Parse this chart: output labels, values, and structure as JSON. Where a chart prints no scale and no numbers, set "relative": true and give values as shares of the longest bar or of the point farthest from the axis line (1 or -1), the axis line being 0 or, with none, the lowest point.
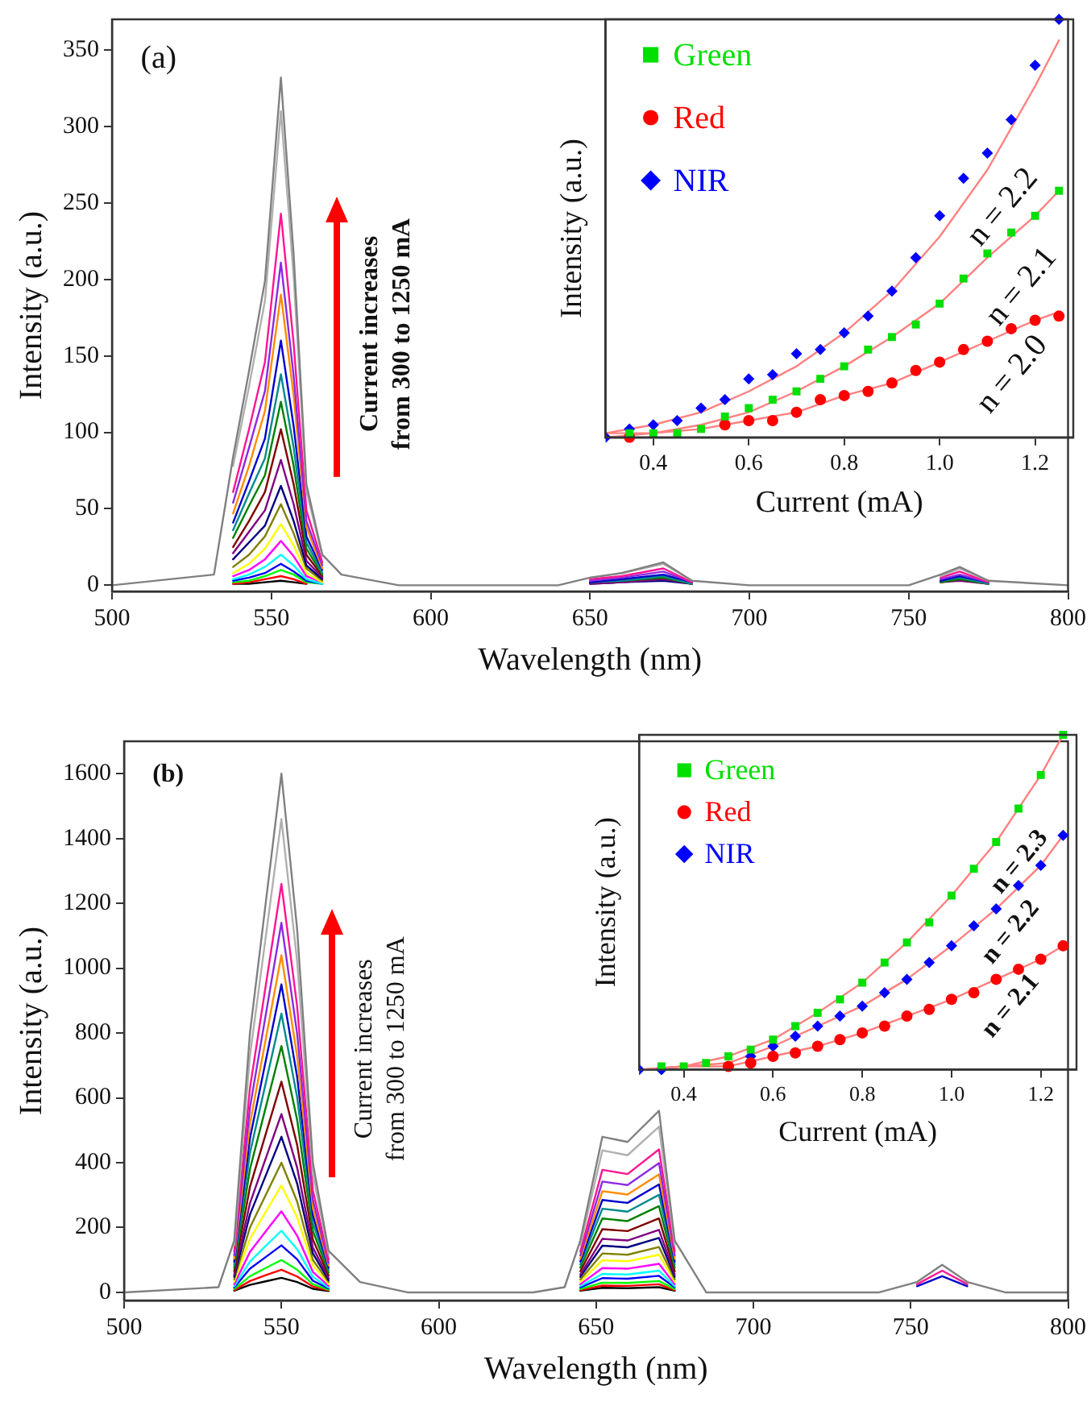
{
  "chart_data": [
    {
      "type": "line",
      "xlabel": "Wavelength (nm)",
      "ylabel": "Intensity (a.u.)",
      "xlim": [
        500,
        800
      ],
      "ylim": [
        -4,
        370
      ],
      "xticks": [
        500,
        550,
        600,
        650,
        700,
        750,
        800
      ],
      "yticks": [
        0,
        50,
        100,
        150,
        200,
        250,
        300,
        350
      ],
      "marker": "none",
      "annotations": [
        "(a)",
        "Current increases\nfrom 300 to 1250 mA"
      ],
      "x": [
        500,
        532,
        538,
        543,
        548,
        553,
        557,
        561,
        566,
        572,
        590,
        640,
        650,
        660,
        673,
        682,
        700,
        750,
        760,
        766,
        775,
        800
      ],
      "series": [
        {
          "color": "#808080",
          "values": [
            0,
            7,
            84,
            140,
            199,
            332,
            216,
            66,
            20,
            7,
            0,
            0,
            5,
            8,
            15,
            3,
            0,
            0,
            7,
            12,
            3,
            0
          ]
        },
        {
          "color": "#b0b0b0",
          "values": [
            null,
            null,
            78,
            130,
            186,
            310,
            202,
            62,
            19,
            null,
            null,
            null,
            5,
            8,
            14,
            3,
            null,
            null,
            6,
            11,
            3,
            null
          ]
        },
        {
          "color": "#ff1493",
          "values": [
            null,
            null,
            61,
            102,
            146,
            243,
            158,
            49,
            15,
            null,
            null,
            null,
            4,
            6,
            11,
            2,
            null,
            null,
            5,
            9,
            2,
            null
          ]
        },
        {
          "color": "#8a2be2",
          "values": [
            null,
            null,
            54,
            90,
            127,
            211,
            137,
            42,
            13,
            null,
            null,
            null,
            3,
            5,
            9,
            2,
            null,
            null,
            4,
            7,
            2,
            null
          ]
        },
        {
          "color": "#ff8c00",
          "values": [
            null,
            null,
            47,
            78,
            114,
            190,
            124,
            38,
            11,
            null,
            null,
            null,
            null,
            null,
            null,
            null,
            null,
            null,
            null,
            null,
            null,
            null
          ]
        },
        {
          "color": "#0000cd",
          "values": [
            null,
            null,
            41,
            68,
            96,
            160,
            104,
            32,
            10,
            null,
            null,
            null,
            2,
            4,
            7,
            2,
            null,
            null,
            3,
            6,
            2,
            null
          ]
        },
        {
          "color": "#008b8b",
          "values": [
            null,
            null,
            36,
            60,
            83,
            138,
            90,
            28,
            8,
            null,
            null,
            null,
            2,
            3,
            6,
            1,
            null,
            null,
            3,
            5,
            1,
            null
          ]
        },
        {
          "color": "#008000",
          "values": [
            null,
            null,
            31,
            52,
            72,
            120,
            78,
            24,
            7,
            null,
            null,
            null,
            2,
            3,
            5,
            1,
            null,
            null,
            2,
            4,
            1,
            null
          ]
        },
        {
          "color": "#800000",
          "values": [
            null,
            null,
            25,
            42,
            61,
            102,
            66,
            20,
            6,
            null,
            null,
            null,
            2,
            3,
            5,
            1,
            null,
            null,
            2,
            4,
            1,
            null
          ]
        },
        {
          "color": "#800080",
          "values": [
            null,
            null,
            21,
            35,
            49,
            82,
            53,
            16,
            5,
            null,
            null,
            null,
            1,
            2,
            4,
            1,
            null,
            null,
            2,
            3,
            1,
            null
          ]
        },
        {
          "color": "#000080",
          "values": [
            null,
            null,
            17,
            28,
            39,
            65,
            42,
            13,
            4,
            null,
            null,
            null,
            1,
            2,
            3,
            1,
            null,
            null,
            null,
            null,
            null,
            null
          ]
        },
        {
          "color": "#808000",
          "values": [
            null,
            null,
            12,
            20,
            32,
            53,
            34,
            11,
            3,
            null,
            null,
            null,
            null,
            null,
            null,
            null,
            null,
            null,
            null,
            null,
            null,
            null
          ]
        },
        {
          "color": "#ffff00",
          "values": [
            null,
            null,
            8,
            14,
            24,
            40,
            26,
            8,
            2,
            null,
            null,
            null,
            null,
            null,
            null,
            null,
            null,
            null,
            null,
            null,
            null,
            null
          ]
        },
        {
          "color": "#ff00ff",
          "values": [
            null,
            null,
            6,
            10,
            17,
            29,
            19,
            6,
            2,
            null,
            null,
            null,
            null,
            null,
            null,
            null,
            null,
            null,
            null,
            null,
            null,
            null
          ]
        },
        {
          "color": "#00ffff",
          "values": [
            null,
            null,
            4,
            7,
            12,
            20,
            13,
            4,
            1,
            null,
            null,
            null,
            null,
            null,
            null,
            null,
            null,
            null,
            null,
            null,
            null,
            null
          ]
        },
        {
          "color": "#0000ff",
          "values": [
            null,
            null,
            3,
            5,
            8,
            14,
            9,
            3,
            1,
            null,
            null,
            null,
            null,
            null,
            null,
            null,
            null,
            null,
            null,
            null,
            null,
            null
          ]
        },
        {
          "color": "#00ff00",
          "values": [
            null,
            null,
            2,
            3,
            6,
            10,
            7,
            2,
            1,
            null,
            null,
            null,
            null,
            null,
            null,
            null,
            null,
            null,
            null,
            null,
            null,
            null
          ]
        },
        {
          "color": "#ff0000",
          "values": [
            null,
            null,
            1,
            2,
            4,
            6,
            4,
            1,
            null,
            null,
            null,
            null,
            null,
            null,
            null,
            null,
            null,
            null,
            null,
            null,
            null,
            null
          ]
        },
        {
          "color": "#000000",
          "values": [
            null,
            null,
            1,
            1,
            2,
            3,
            2,
            1,
            null,
            null,
            null,
            null,
            null,
            null,
            null,
            null,
            null,
            null,
            null,
            null,
            null,
            null
          ]
        }
      ]
    },
    {
      "type": "scatter",
      "xlabel": "Current (mA)",
      "ylabel": "Intensity (a.u.)",
      "relative": true,
      "xlim": [
        0.3,
        1.28
      ],
      "xticks": [
        0.4,
        0.6,
        0.8,
        {
          "value": 1,
          "label": "1.0"
        },
        1.2
      ],
      "legend": "top left",
      "annotations": [
        "n = 2.2",
        "n = 2.1",
        "n = 2.0"
      ],
      "x": [
        0.3,
        0.35,
        0.4,
        0.45,
        0.5,
        0.55,
        0.6,
        0.65,
        0.7,
        0.75,
        0.8,
        0.85,
        0.9,
        0.95,
        1.0,
        1.05,
        1.1,
        1.15,
        1.2,
        1.25
      ],
      "series": [
        {
          "name": "Green",
          "color": "#00e000",
          "marker": "square",
          "values": [
            null,
            0.01,
            0.01,
            0.01,
            0.02,
            0.05,
            0.07,
            0.09,
            0.11,
            0.14,
            0.17,
            0.21,
            0.24,
            0.27,
            0.32,
            0.38,
            0.44,
            0.49,
            0.53,
            0.59
          ]
        },
        {
          "name": "Red",
          "color": "#ff0000",
          "marker": "circle",
          "values": [
            null,
            0,
            null,
            null,
            null,
            0.03,
            0.04,
            0.04,
            0.06,
            0.09,
            0.1,
            0.11,
            0.13,
            0.16,
            0.18,
            0.21,
            0.23,
            0.26,
            0.28,
            0.29
          ]
        },
        {
          "name": "NIR",
          "color": "#0000ff",
          "marker": "diamond",
          "values": [
            0,
            0.02,
            0.03,
            0.04,
            0.07,
            0.09,
            0.14,
            0.15,
            0.2,
            0.21,
            0.25,
            0.29,
            0.35,
            0.43,
            0.53,
            0.62,
            0.68,
            0.76,
            0.89,
            1
          ]
        },
        {
          "type": "line",
          "color": "#ff8080",
          "marker": "none",
          "x": [
            0.3,
            0.4,
            0.5,
            0.6,
            0.7,
            0.8,
            0.9,
            1.0,
            1.1,
            1.2,
            1.25
          ],
          "values": [
            0.01,
            0.01,
            0.03,
            0.06,
            0.11,
            0.17,
            0.24,
            0.32,
            0.43,
            0.53,
            0.59
          ]
        },
        {
          "type": "line",
          "color": "#ff8080",
          "marker": "none",
          "x": [
            0.3,
            0.4,
            0.5,
            0.6,
            0.7,
            0.8,
            0.9,
            1.0,
            1.1,
            1.2,
            1.25
          ],
          "values": [
            0,
            0.01,
            0.02,
            0.04,
            0.06,
            0.1,
            0.13,
            0.18,
            0.23,
            0.28,
            0.3
          ]
        },
        {
          "type": "line",
          "color": "#ff8080",
          "marker": "none",
          "x": [
            0.3,
            0.4,
            0.5,
            0.6,
            0.7,
            0.8,
            0.9,
            1.0,
            1.1,
            1.2,
            1.25
          ],
          "values": [
            0.01,
            0.03,
            0.06,
            0.11,
            0.17,
            0.25,
            0.35,
            0.48,
            0.64,
            0.84,
            0.95
          ]
        }
      ]
    },
    {
      "type": "line",
      "xlabel": "Wavelength (nm)",
      "ylabel": "Intensity (a.u.)",
      "xlim": [
        500,
        800
      ],
      "ylim": [
        -25,
        1700
      ],
      "xticks": [
        500,
        550,
        600,
        650,
        700,
        750,
        800
      ],
      "yticks": [
        0,
        200,
        400,
        600,
        800,
        1000,
        1200,
        1400,
        1600
      ],
      "marker": "none",
      "annotations": [
        "(b)",
        "Current increases\nfrom 300 to 1250 mA"
      ],
      "x": [
        500,
        530,
        535,
        540,
        545,
        550,
        555,
        560,
        565,
        575,
        590,
        630,
        640,
        645,
        652,
        660,
        670,
        675,
        685,
        740,
        752,
        760,
        768,
        780,
        800
      ],
      "series": [
        {
          "color": "#808080",
          "values": [
            0,
            16,
            160,
            800,
            1200,
            1600,
            1120,
            400,
            128,
            32,
            0,
            0,
            16,
            160,
            480,
            464,
            560,
            160,
            0,
            0,
            32,
            85,
            32,
            0,
            0
          ]
        },
        {
          "color": "#b0b0b0",
          "values": [
            null,
            null,
            146,
            730,
            1095,
            1460,
            1022,
            365,
            117,
            null,
            null,
            null,
            null,
            146,
            438,
            423,
            511,
            146,
            null,
            null,
            null,
            null,
            null,
            null,
            null
          ]
        },
        {
          "color": "#ff1493",
          "values": [
            null,
            null,
            126,
            630,
            945,
            1260,
            882,
            315,
            101,
            null,
            null,
            null,
            null,
            126,
            378,
            365,
            441,
            126,
            null,
            null,
            25,
            67,
            25,
            null,
            null
          ]
        },
        {
          "color": "#8a2be2",
          "values": [
            null,
            null,
            114,
            570,
            855,
            1140,
            798,
            285,
            91,
            null,
            null,
            null,
            null,
            114,
            342,
            331,
            399,
            114,
            null,
            null,
            null,
            null,
            null,
            null,
            null
          ]
        },
        {
          "color": "#ff8c00",
          "values": [
            null,
            null,
            104,
            520,
            780,
            1040,
            728,
            260,
            83,
            null,
            null,
            null,
            null,
            104,
            312,
            302,
            364,
            104,
            null,
            null,
            null,
            null,
            null,
            null,
            null
          ]
        },
        {
          "color": "#0000cd",
          "values": [
            null,
            null,
            95,
            475,
            713,
            950,
            665,
            238,
            76,
            null,
            null,
            null,
            null,
            95,
            285,
            276,
            333,
            95,
            null,
            null,
            19,
            50,
            19,
            null,
            null
          ]
        },
        {
          "color": "#008b8b",
          "values": [
            null,
            null,
            86,
            430,
            645,
            860,
            602,
            215,
            69,
            null,
            null,
            null,
            null,
            86,
            258,
            249,
            301,
            86,
            null,
            null,
            null,
            null,
            null,
            null,
            null
          ]
        },
        {
          "color": "#008000",
          "values": [
            null,
            null,
            76,
            380,
            570,
            760,
            532,
            190,
            61,
            null,
            null,
            null,
            null,
            76,
            228,
            220,
            266,
            76,
            null,
            null,
            null,
            null,
            null,
            null,
            null
          ]
        },
        {
          "color": "#800000",
          "values": [
            null,
            null,
            65,
            325,
            488,
            650,
            455,
            163,
            52,
            null,
            null,
            null,
            null,
            65,
            195,
            189,
            228,
            65,
            null,
            null,
            null,
            null,
            null,
            null,
            null
          ]
        },
        {
          "color": "#800080",
          "values": [
            null,
            null,
            55,
            275,
            413,
            550,
            385,
            138,
            44,
            null,
            null,
            null,
            null,
            55,
            165,
            160,
            193,
            55,
            null,
            null,
            null,
            null,
            null,
            null,
            null
          ]
        },
        {
          "color": "#000080",
          "values": [
            null,
            null,
            48,
            240,
            360,
            480,
            336,
            120,
            38,
            null,
            null,
            null,
            null,
            48,
            144,
            139,
            168,
            48,
            null,
            null,
            null,
            null,
            null,
            null,
            null
          ]
        },
        {
          "color": "#808000",
          "values": [
            null,
            null,
            40,
            200,
            300,
            400,
            280,
            100,
            32,
            null,
            null,
            null,
            null,
            40,
            120,
            116,
            140,
            40,
            null,
            null,
            null,
            null,
            null,
            null,
            null
          ]
        },
        {
          "color": "#ffff00",
          "values": [
            null,
            null,
            33,
            165,
            248,
            330,
            231,
            83,
            26,
            null,
            null,
            null,
            null,
            33,
            99,
            96,
            116,
            33,
            null,
            null,
            null,
            null,
            null,
            null,
            null
          ]
        },
        {
          "color": "#ff00ff",
          "values": [
            null,
            null,
            25,
            125,
            188,
            250,
            175,
            63,
            20,
            null,
            null,
            null,
            null,
            25,
            75,
            73,
            88,
            25,
            null,
            null,
            null,
            null,
            null,
            null,
            null
          ]
        },
        {
          "color": "#00ffff",
          "values": [
            null,
            null,
            19,
            95,
            143,
            190,
            133,
            48,
            15,
            null,
            null,
            null,
            null,
            19,
            57,
            55,
            67,
            19,
            null,
            null,
            null,
            null,
            null,
            null,
            null
          ]
        },
        {
          "color": "#0000ff",
          "values": [
            null,
            null,
            15,
            73,
            109,
            145,
            102,
            36,
            12,
            null,
            null,
            null,
            null,
            15,
            44,
            42,
            51,
            15,
            null,
            null,
            null,
            null,
            null,
            null,
            null
          ]
        },
        {
          "color": "#00ff00",
          "values": [
            null,
            null,
            10,
            50,
            75,
            100,
            70,
            25,
            8,
            null,
            null,
            null,
            null,
            10,
            30,
            29,
            35,
            10,
            null,
            null,
            null,
            null,
            null,
            null,
            null
          ]
        },
        {
          "color": "#ff0000",
          "values": [
            null,
            null,
            7,
            35,
            53,
            70,
            49,
            18,
            6,
            null,
            null,
            null,
            null,
            7,
            21,
            20,
            25,
            7,
            null,
            null,
            null,
            null,
            null,
            null,
            null
          ]
        },
        {
          "color": "#000000",
          "values": [
            null,
            null,
            5,
            23,
            34,
            45,
            32,
            11,
            4,
            null,
            null,
            null,
            null,
            5,
            14,
            13,
            16,
            5,
            null,
            null,
            null,
            null,
            null,
            null,
            null
          ]
        }
      ]
    },
    {
      "type": "scatter",
      "xlabel": "Current (mA)",
      "ylabel": "Intensity (a.u.)",
      "relative": true,
      "xlim": [
        0.3,
        1.28
      ],
      "xticks": [
        0.4,
        0.6,
        0.8,
        {
          "value": 1,
          "label": "1.0"
        },
        1.2
      ],
      "legend": "top left",
      "annotations": [
        "n = 2.3",
        "n = 2.2",
        "n = 2.1"
      ],
      "x": [
        0.3,
        0.35,
        0.4,
        0.45,
        0.5,
        0.55,
        0.6,
        0.65,
        0.7,
        0.75,
        0.8,
        0.85,
        0.9,
        0.95,
        1.0,
        1.05,
        1.1,
        1.15,
        1.2,
        1.25
      ],
      "series": [
        {
          "name": "Green",
          "color": "#00e000",
          "marker": "square",
          "values": [
            null,
            0.01,
            0.01,
            0.02,
            0.04,
            0.06,
            0.09,
            0.13,
            0.17,
            0.21,
            0.26,
            0.32,
            0.38,
            0.44,
            0.52,
            0.6,
            0.68,
            0.78,
            0.88,
            1
          ]
        },
        {
          "name": "Red",
          "color": "#ff0000",
          "marker": "circle",
          "values": [
            null,
            null,
            null,
            null,
            0.01,
            0.02,
            0.04,
            0.05,
            0.07,
            0.09,
            0.11,
            0.13,
            0.16,
            0.18,
            0.21,
            0.23,
            0.27,
            0.3,
            0.33,
            0.37
          ]
        },
        {
          "name": "NIR",
          "color": "#0000ff",
          "marker": "diamond",
          "values": [
            0,
            0,
            null,
            null,
            null,
            0.04,
            0.07,
            0.1,
            0.13,
            0.16,
            0.19,
            0.23,
            0.27,
            0.32,
            0.37,
            0.43,
            0.48,
            0.55,
            0.61,
            0.7
          ]
        },
        {
          "type": "line",
          "color": "#ff8080",
          "marker": "none",
          "x": [
            0.3,
            0.4,
            0.5,
            0.6,
            0.7,
            0.8,
            0.9,
            1.0,
            1.1,
            1.2,
            1.25
          ],
          "values": [
            0,
            0.01,
            0.04,
            0.09,
            0.17,
            0.26,
            0.38,
            0.52,
            0.68,
            0.88,
            1
          ]
        },
        {
          "type": "line",
          "color": "#ff8080",
          "marker": "none",
          "x": [
            0.3,
            0.4,
            0.5,
            0.6,
            0.7,
            0.8,
            0.9,
            1.0,
            1.1,
            1.2,
            1.25
          ],
          "values": [
            0,
            0.01,
            0.02,
            0.07,
            0.13,
            0.19,
            0.27,
            0.37,
            0.48,
            0.61,
            0.7
          ]
        },
        {
          "type": "line",
          "color": "#ff8080",
          "marker": "none",
          "x": [
            0.3,
            0.4,
            0.5,
            0.6,
            0.7,
            0.8,
            0.9,
            1.0,
            1.1,
            1.2,
            1.25
          ],
          "values": [
            0,
            0.01,
            0.01,
            0.04,
            0.07,
            0.11,
            0.16,
            0.21,
            0.27,
            0.33,
            0.37
          ]
        }
      ]
    }
  ]
}
